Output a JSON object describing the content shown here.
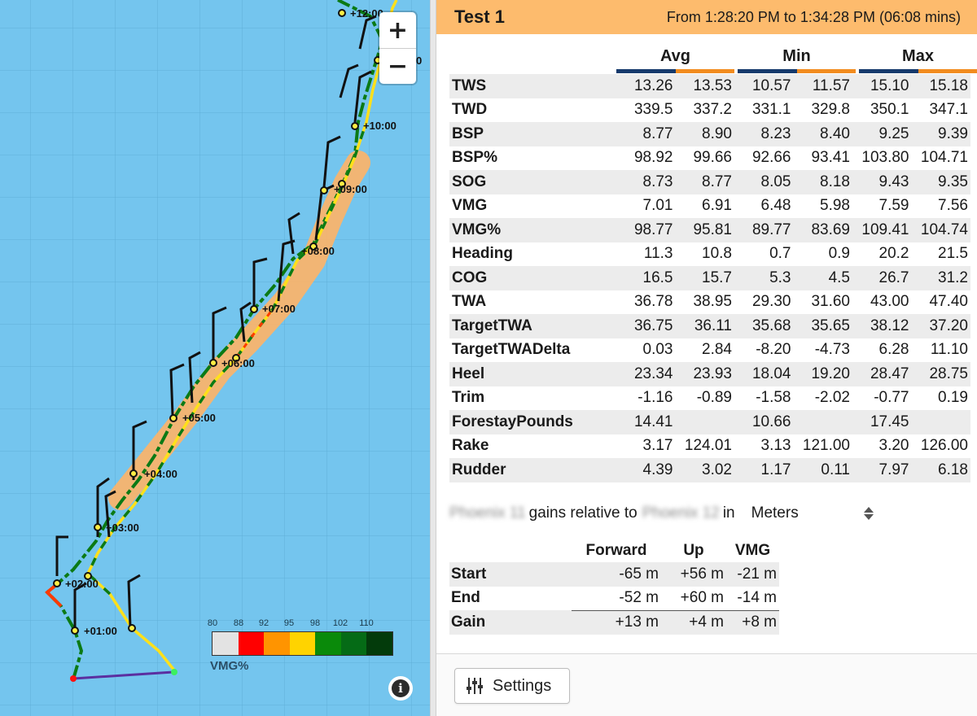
{
  "map": {
    "zoom_in_label": "+",
    "zoom_out_label": "−",
    "info_label": "i",
    "time_labels": [
      "+01:00",
      "+02:00",
      "+03:00",
      "+04:00",
      "+05:00",
      "+06:00",
      "+07:00",
      "+08:00",
      "+09:00",
      "+10:00",
      "+12:00",
      "0"
    ],
    "legend": {
      "ticks": [
        "80",
        "88",
        "92",
        "95",
        "98",
        "102",
        "110"
      ],
      "colors": [
        "#e3e3e3",
        "#ff0000",
        "#ff9400",
        "#ffd300",
        "#0a8a0a",
        "#056b16",
        "#033b0b"
      ],
      "label": "VMG%"
    }
  },
  "header": {
    "title": "Test 1",
    "range": "From 1:28:20 PM to 1:34:28 PM (06:08 mins)",
    "color": "#fdbb6d"
  },
  "stats": {
    "groups": [
      "Avg",
      "Min",
      "Max"
    ],
    "series_colors": [
      "#163a6c",
      "#f28c1f"
    ],
    "rows": [
      {
        "label": "TWS",
        "values": [
          "13.26",
          "13.53",
          "10.57",
          "11.57",
          "15.10",
          "15.18"
        ]
      },
      {
        "label": "TWD",
        "values": [
          "339.5",
          "337.2",
          "331.1",
          "329.8",
          "350.1",
          "347.1"
        ]
      },
      {
        "label": "BSP",
        "values": [
          "8.77",
          "8.90",
          "8.23",
          "8.40",
          "9.25",
          "9.39"
        ]
      },
      {
        "label": "BSP%",
        "values": [
          "98.92",
          "99.66",
          "92.66",
          "93.41",
          "103.80",
          "104.71"
        ]
      },
      {
        "label": "SOG",
        "values": [
          "8.73",
          "8.77",
          "8.05",
          "8.18",
          "9.43",
          "9.35"
        ]
      },
      {
        "label": "VMG",
        "values": [
          "7.01",
          "6.91",
          "6.48",
          "5.98",
          "7.59",
          "7.56"
        ]
      },
      {
        "label": "VMG%",
        "values": [
          "98.77",
          "95.81",
          "89.77",
          "83.69",
          "109.41",
          "104.74"
        ]
      },
      {
        "label": "Heading",
        "values": [
          "11.3",
          "10.8",
          "0.7",
          "0.9",
          "20.2",
          "21.5"
        ]
      },
      {
        "label": "COG",
        "values": [
          "16.5",
          "15.7",
          "5.3",
          "4.5",
          "26.7",
          "31.2"
        ]
      },
      {
        "label": "TWA",
        "values": [
          "36.78",
          "38.95",
          "29.30",
          "31.60",
          "43.00",
          "47.40"
        ]
      },
      {
        "label": "TargetTWA",
        "values": [
          "36.75",
          "36.11",
          "35.68",
          "35.65",
          "38.12",
          "37.20"
        ]
      },
      {
        "label": "TargetTWADelta",
        "values": [
          "0.03",
          "2.84",
          "-8.20",
          "-4.73",
          "6.28",
          "11.10"
        ]
      },
      {
        "label": "Heel",
        "values": [
          "23.34",
          "23.93",
          "18.04",
          "19.20",
          "28.47",
          "28.75"
        ]
      },
      {
        "label": "Trim",
        "values": [
          "-1.16",
          "-0.89",
          "-1.58",
          "-2.02",
          "-0.77",
          "0.19"
        ]
      },
      {
        "label": "ForestayPounds",
        "values": [
          "14.41",
          "",
          "10.66",
          "",
          "17.45",
          ""
        ]
      },
      {
        "label": "Rake",
        "values": [
          "3.17",
          "124.01",
          "3.13",
          "121.00",
          "3.20",
          "126.00"
        ]
      },
      {
        "label": "Rudder",
        "values": [
          "4.39",
          "3.02",
          "1.17",
          "0.11",
          "7.97",
          "6.18"
        ]
      }
    ]
  },
  "gains": {
    "boat_a": "Phoenix 11",
    "middle_text": "gains relative to",
    "boat_b": "Phoenix 12",
    "in_text": "in",
    "unit": "Meters",
    "columns": [
      "Forward",
      "Up",
      "VMG"
    ],
    "rows": [
      {
        "label": "Start",
        "values": [
          "-65 m",
          "+56 m",
          "-21 m"
        ]
      },
      {
        "label": "End",
        "values": [
          "-52 m",
          "+60 m",
          "-14 m"
        ]
      },
      {
        "label": "Gain",
        "values": [
          "+13 m",
          "+4 m",
          "+8 m"
        ]
      }
    ]
  },
  "footer": {
    "settings_label": "Settings"
  }
}
